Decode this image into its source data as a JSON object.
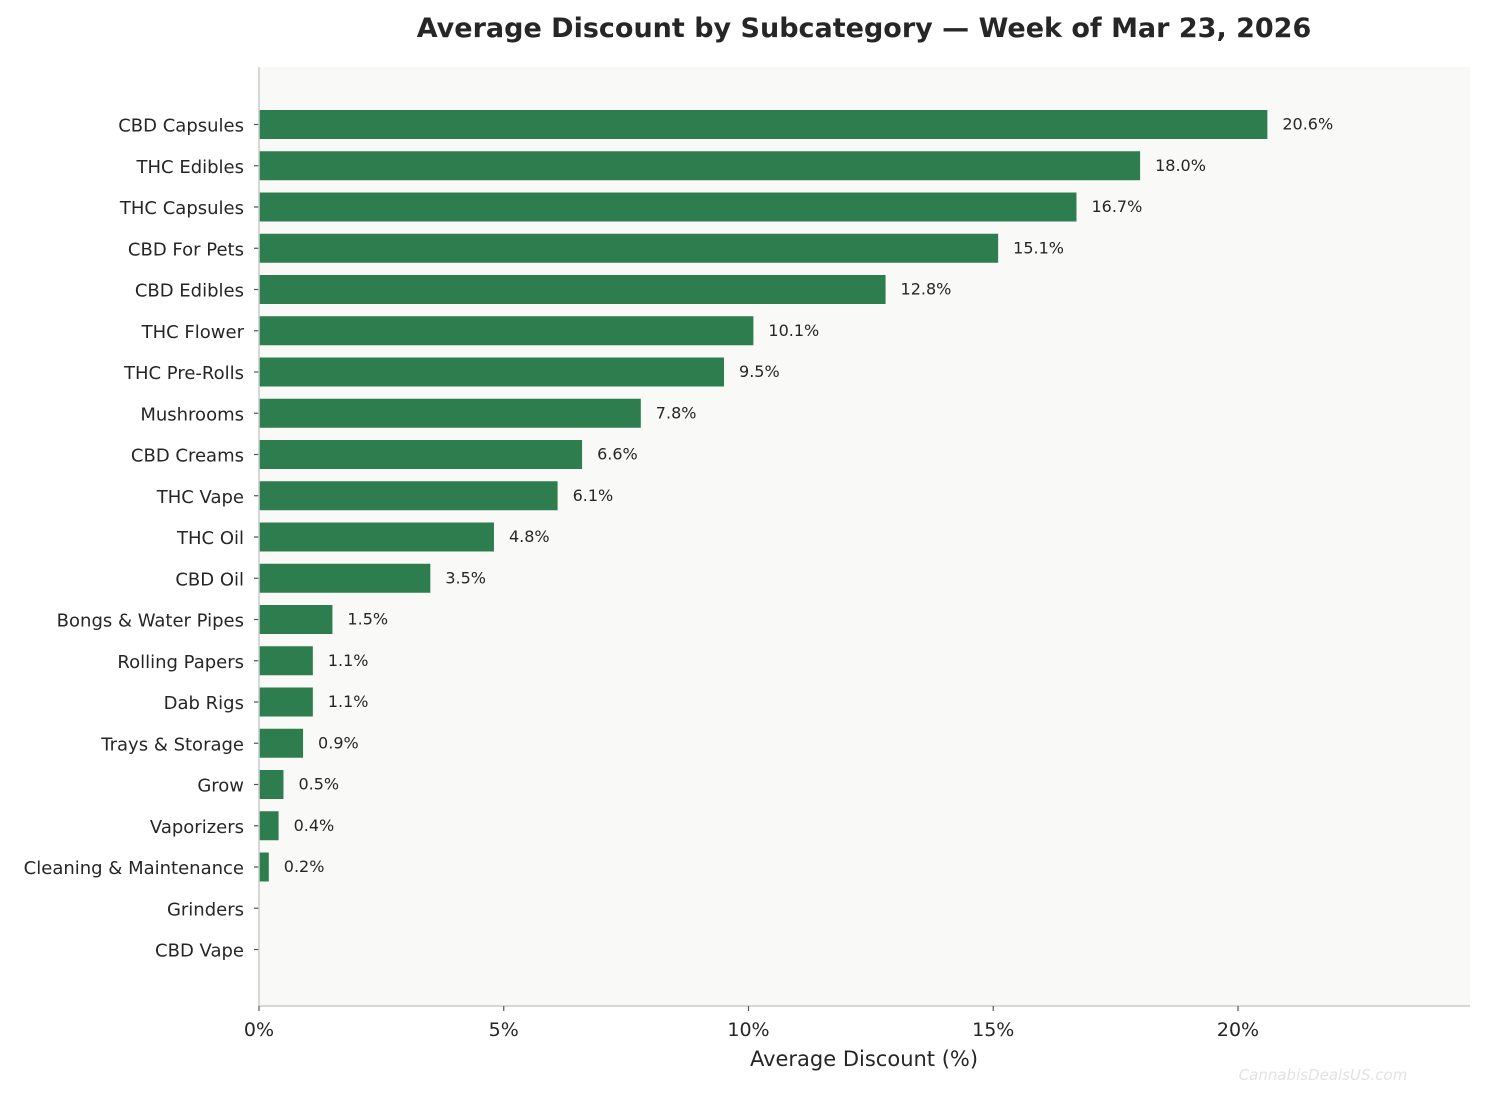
{
  "chart_data": {
    "type": "bar",
    "orientation": "horizontal",
    "title": "Average Discount by Subcategory — Week of Mar 23, 2026",
    "xlabel": "Average Discount (%)",
    "ylabel": "",
    "xlim": [
      0,
      24.7
    ],
    "xticks": [
      0,
      5,
      10,
      15,
      20
    ],
    "xtick_labels": [
      "0%",
      "5%",
      "10%",
      "15%",
      "20%"
    ],
    "grid": false,
    "categories": [
      "CBD Capsules",
      "THC Edibles",
      "THC Capsules",
      "CBD For Pets",
      "CBD Edibles",
      "THC Flower",
      "THC Pre-Rolls",
      "Mushrooms",
      "CBD Creams",
      "THC Vape",
      "THC Oil",
      "CBD Oil",
      "Bongs & Water Pipes",
      "Rolling Papers",
      "Dab Rigs",
      "Trays & Storage",
      "Grow",
      "Vaporizers",
      "Cleaning & Maintenance",
      "Grinders",
      "CBD Vape"
    ],
    "values": [
      20.6,
      18.0,
      16.7,
      15.1,
      12.8,
      10.1,
      9.5,
      7.8,
      6.6,
      6.1,
      4.8,
      3.5,
      1.5,
      1.1,
      1.1,
      0.9,
      0.5,
      0.4,
      0.2,
      0,
      0
    ],
    "value_labels": [
      "20.6%",
      "18.0%",
      "16.7%",
      "15.1%",
      "12.8%",
      "10.1%",
      "9.5%",
      "7.8%",
      "6.6%",
      "6.1%",
      "4.8%",
      "3.5%",
      "1.5%",
      "1.1%",
      "1.1%",
      "0.9%",
      "0.5%",
      "0.4%",
      "0.2%",
      "",
      ""
    ],
    "colors": {
      "bar": "#2e7d4f",
      "plot_background": "#f9f9f7",
      "axis": "#cccccc",
      "text": "#262626"
    }
  },
  "watermark": "CannabisDealsUS.com"
}
